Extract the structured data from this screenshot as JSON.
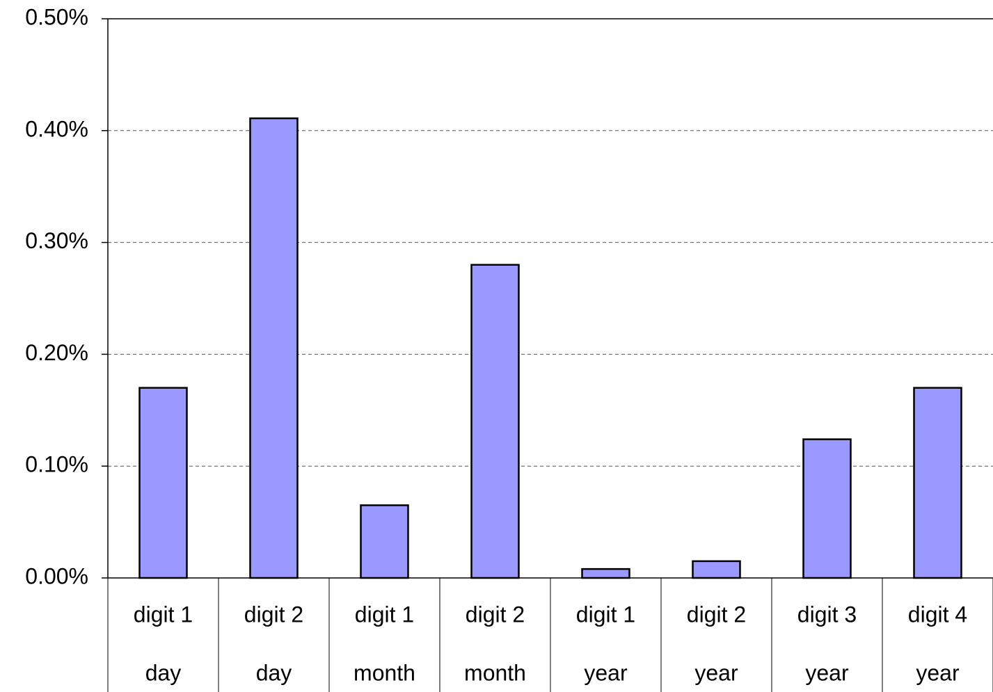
{
  "chart_data": {
    "type": "bar",
    "categories": [
      "digit 1",
      "digit 2",
      "digit 1",
      "digit 2",
      "digit 1",
      "digit 2",
      "digit 3",
      "digit 4"
    ],
    "category_groups": [
      "day",
      "day",
      "month",
      "month",
      "year",
      "year",
      "year",
      "year"
    ],
    "values": [
      0.17,
      0.411,
      0.065,
      0.28,
      0.008,
      0.015,
      0.124,
      0.17
    ],
    "color": "#9999ff",
    "ylim": [
      0,
      0.5
    ],
    "yticks": [
      {
        "value": 0,
        "label": "0.00%"
      },
      {
        "value": 0.1,
        "label": "0.10%"
      },
      {
        "value": 0.2,
        "label": "0.20%"
      },
      {
        "value": 0.3,
        "label": "0.30%"
      },
      {
        "value": 0.4,
        "label": "0.40%"
      },
      {
        "value": 0.5,
        "label": "0.50%"
      }
    ],
    "grid": true
  }
}
